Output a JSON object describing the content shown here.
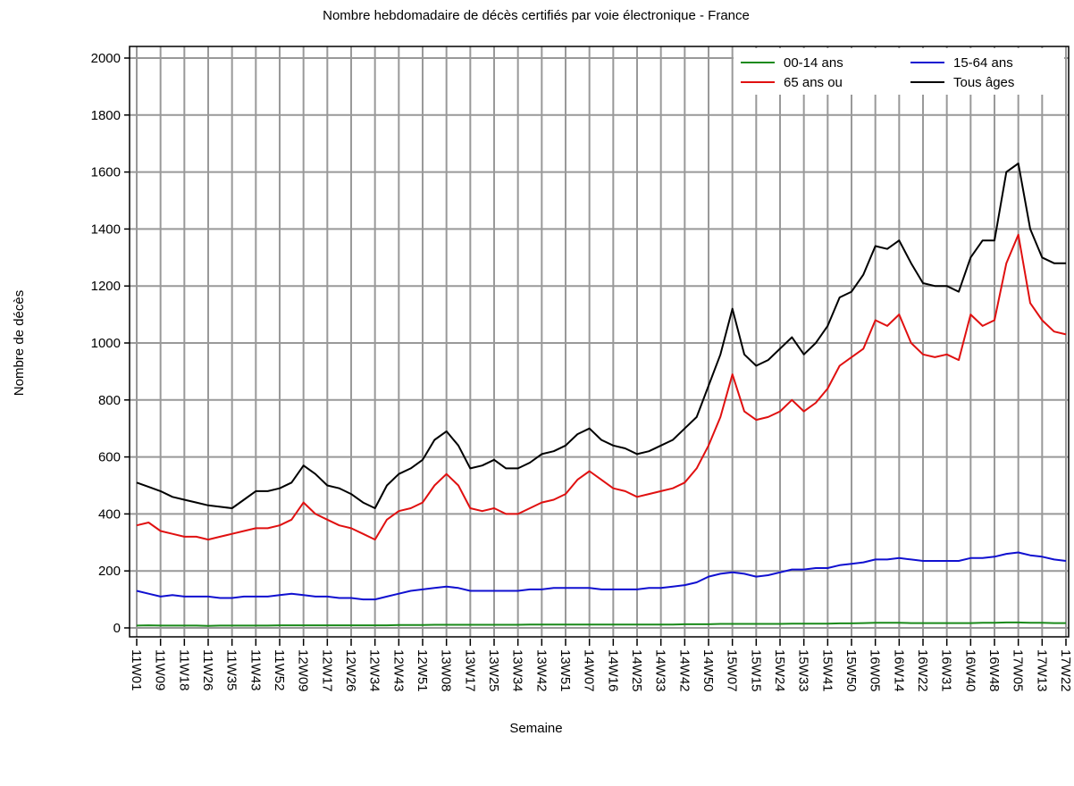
{
  "chart_data": {
    "type": "line",
    "title": "Nombre hebdomadaire de décès certifiés par voie électronique - France",
    "x_label": "Semaine",
    "y_label": "Nombre de décès",
    "categories": [
      "11W01",
      null,
      "11W09",
      null,
      "11W18",
      null,
      "11W26",
      null,
      "11W35",
      null,
      "11W43",
      null,
      "11W52",
      null,
      "12W09",
      null,
      "12W17",
      null,
      "12W26",
      null,
      "12W34",
      null,
      "12W43",
      null,
      "12W51",
      null,
      "13W08",
      null,
      "13W17",
      null,
      "13W25",
      null,
      "13W34",
      null,
      "13W42",
      null,
      "13W51",
      null,
      "14W07",
      null,
      "14W16",
      null,
      "14W25",
      null,
      "14W33",
      null,
      "14W42",
      null,
      "14W50",
      null,
      "15W07",
      null,
      "15W15",
      null,
      "15W24",
      null,
      "15W33",
      null,
      "15W41",
      null,
      "15W50",
      null,
      "16W05",
      null,
      "16W14",
      null,
      "16W22",
      null,
      "16W31",
      null,
      "16W40",
      null,
      "16W48",
      null,
      "17W05",
      null,
      "17W13",
      null,
      "17W22"
    ],
    "series": [
      {
        "name": "00-14 ans",
        "color": "#1a8a1a",
        "values": [
          8,
          9,
          8,
          8,
          8,
          8,
          7,
          8,
          8,
          8,
          8,
          8,
          9,
          9,
          9,
          9,
          9,
          9,
          9,
          9,
          9,
          9,
          10,
          10,
          10,
          11,
          11,
          11,
          11,
          11,
          11,
          11,
          11,
          12,
          12,
          12,
          12,
          12,
          12,
          12,
          12,
          12,
          12,
          12,
          12,
          12,
          13,
          13,
          13,
          14,
          14,
          14,
          14,
          14,
          14,
          15,
          15,
          15,
          15,
          16,
          16,
          17,
          18,
          18,
          18,
          17,
          17,
          17,
          17,
          17,
          17,
          18,
          18,
          19,
          19,
          18,
          18,
          17,
          17
        ]
      },
      {
        "name": "15-64 ans",
        "color": "#1010d0",
        "values": [
          130,
          120,
          110,
          115,
          110,
          110,
          110,
          105,
          105,
          110,
          110,
          110,
          115,
          120,
          115,
          110,
          110,
          105,
          105,
          100,
          100,
          110,
          120,
          130,
          135,
          140,
          145,
          140,
          130,
          130,
          130,
          130,
          130,
          135,
          135,
          140,
          140,
          140,
          140,
          135,
          135,
          135,
          135,
          140,
          140,
          145,
          150,
          160,
          180,
          190,
          195,
          190,
          180,
          185,
          195,
          205,
          205,
          210,
          210,
          220,
          225,
          230,
          240,
          240,
          245,
          240,
          235,
          235,
          235,
          235,
          245,
          245,
          250,
          260,
          265,
          255,
          250,
          240,
          235
        ]
      },
      {
        "name": "65 ans ou",
        "color": "#e01010",
        "values": [
          360,
          370,
          340,
          330,
          320,
          320,
          310,
          320,
          330,
          340,
          350,
          350,
          360,
          380,
          440,
          400,
          380,
          360,
          350,
          330,
          310,
          380,
          410,
          420,
          440,
          500,
          540,
          500,
          420,
          410,
          420,
          400,
          400,
          420,
          440,
          450,
          470,
          520,
          550,
          520,
          490,
          480,
          460,
          470,
          480,
          490,
          510,
          560,
          640,
          740,
          890,
          760,
          730,
          740,
          760,
          800,
          760,
          790,
          840,
          920,
          950,
          980,
          1080,
          1060,
          1100,
          1000,
          960,
          950,
          960,
          940,
          1100,
          1060,
          1080,
          1280,
          1380,
          1140,
          1080,
          1040,
          1030
        ]
      },
      {
        "name": "Tous âges",
        "color": "#000000",
        "values": [
          510,
          495,
          480,
          460,
          450,
          440,
          430,
          425,
          420,
          450,
          480,
          480,
          490,
          510,
          570,
          540,
          500,
          490,
          470,
          440,
          420,
          500,
          540,
          560,
          590,
          660,
          690,
          640,
          560,
          570,
          590,
          560,
          560,
          580,
          610,
          620,
          640,
          680,
          700,
          660,
          640,
          630,
          610,
          620,
          640,
          660,
          700,
          740,
          850,
          960,
          1120,
          960,
          920,
          940,
          980,
          1020,
          960,
          1000,
          1060,
          1160,
          1180,
          1240,
          1340,
          1330,
          1360,
          1280,
          1210,
          1200,
          1200,
          1180,
          1300,
          1360,
          1360,
          1600,
          1630,
          1400,
          1300,
          1280,
          1280
        ]
      }
    ],
    "ylim": [
      0,
      2000
    ],
    "yticks": [
      0,
      200,
      400,
      600,
      800,
      1000,
      1200,
      1400,
      1600,
      1800,
      2000
    ],
    "grid": true,
    "legend": "top-right"
  }
}
